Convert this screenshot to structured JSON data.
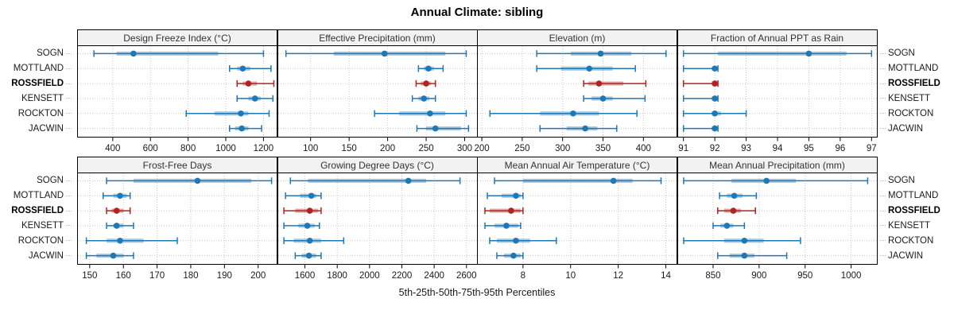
{
  "title": "Annual Climate: sibling",
  "footer": "5th-25th-50th-75th-95th Percentiles",
  "sites": [
    "SOGN",
    "MOTTLAND",
    "ROSSFIELD",
    "KENSETT",
    "ROCKTON",
    "JACWIN"
  ],
  "highlight_site": "ROSSFIELD",
  "colors": {
    "series": "#1f77b4",
    "highlight": "#b22222",
    "strip_bg": "#f2f2f2",
    "grid": "#c9c9c9",
    "border": "#000000"
  },
  "chart_data": [
    {
      "type": "scatter",
      "subtype": "percentile-interval-dotplot",
      "row": 0,
      "col": 0,
      "title": "Design Freeze Index (°C)",
      "percentiles": [
        "5th",
        "25th",
        "50th",
        "75th",
        "95th"
      ],
      "xlim": [
        215,
        1270
      ],
      "ticks": [
        400,
        600,
        800,
        1000,
        1200
      ],
      "grid": "dotted",
      "series": [
        {
          "name": "SOGN",
          "values": [
            300,
            420,
            510,
            960,
            1200
          ]
        },
        {
          "name": "MOTTLAND",
          "values": [
            1020,
            1060,
            1090,
            1130,
            1240
          ]
        },
        {
          "name": "ROSSFIELD",
          "values": [
            1060,
            1090,
            1120,
            1165,
            1255
          ]
        },
        {
          "name": "KENSETT",
          "values": [
            1060,
            1120,
            1155,
            1185,
            1250
          ]
        },
        {
          "name": "ROCKTON",
          "values": [
            790,
            940,
            1080,
            1120,
            1230
          ]
        },
        {
          "name": "JACWIN",
          "values": [
            1020,
            1050,
            1085,
            1120,
            1190
          ]
        }
      ]
    },
    {
      "type": "scatter",
      "subtype": "percentile-interval-dotplot",
      "row": 0,
      "col": 1,
      "title": "Effective Precipitation (mm)",
      "percentiles": [
        "5th",
        "25th",
        "50th",
        "75th",
        "95th"
      ],
      "xlim": [
        58,
        316
      ],
      "ticks": [
        100,
        150,
        200,
        250,
        300
      ],
      "grid": "dotted",
      "series": [
        {
          "name": "SOGN",
          "values": [
            68,
            130,
            196,
            275,
            302
          ]
        },
        {
          "name": "MOTTLAND",
          "values": [
            240,
            247,
            253,
            260,
            272
          ]
        },
        {
          "name": "ROSSFIELD",
          "values": [
            237,
            243,
            250,
            256,
            262
          ]
        },
        {
          "name": "KENSETT",
          "values": [
            232,
            240,
            247,
            254,
            262
          ]
        },
        {
          "name": "ROCKTON",
          "values": [
            183,
            215,
            255,
            275,
            302
          ]
        },
        {
          "name": "JACWIN",
          "values": [
            238,
            250,
            262,
            295,
            305
          ]
        }
      ]
    },
    {
      "type": "scatter",
      "subtype": "percentile-interval-dotplot",
      "row": 0,
      "col": 2,
      "title": "Elevation (m)",
      "percentiles": [
        "5th",
        "25th",
        "50th",
        "75th",
        "95th"
      ],
      "xlim": [
        195,
        441
      ],
      "ticks": [
        200,
        250,
        300,
        350,
        400
      ],
      "grid": "dotted",
      "series": [
        {
          "name": "SOGN",
          "values": [
            268,
            310,
            347,
            385,
            428
          ]
        },
        {
          "name": "MOTTLAND",
          "values": [
            268,
            298,
            333,
            362,
            390
          ]
        },
        {
          "name": "ROSSFIELD",
          "values": [
            326,
            332,
            345,
            375,
            403
          ]
        },
        {
          "name": "KENSETT",
          "values": [
            326,
            336,
            350,
            362,
            402
          ]
        },
        {
          "name": "ROCKTON",
          "values": [
            210,
            272,
            313,
            345,
            392
          ]
        },
        {
          "name": "JACWIN",
          "values": [
            272,
            305,
            328,
            343,
            367
          ]
        }
      ]
    },
    {
      "type": "scatter",
      "subtype": "percentile-interval-dotplot",
      "row": 0,
      "col": 3,
      "title": "Fraction of Annual PPT as Rain",
      "percentiles": [
        "5th",
        "25th",
        "50th",
        "75th",
        "95th"
      ],
      "xlim": [
        90.83,
        97.17
      ],
      "ticks": [
        91,
        92,
        93,
        94,
        95,
        96,
        97
      ],
      "grid": "dotted",
      "series": [
        {
          "name": "SOGN",
          "values": [
            91,
            92.1,
            95,
            96.2,
            97
          ]
        },
        {
          "name": "MOTTLAND",
          "values": [
            91,
            91.9,
            92,
            92.05,
            92.1
          ]
        },
        {
          "name": "ROSSFIELD",
          "values": [
            91,
            91.9,
            92,
            92.05,
            92.1
          ]
        },
        {
          "name": "KENSETT",
          "values": [
            91,
            91.9,
            92,
            92.05,
            92.1
          ]
        },
        {
          "name": "ROCKTON",
          "values": [
            91,
            91.9,
            92,
            92.2,
            93
          ]
        },
        {
          "name": "JACWIN",
          "values": [
            91,
            91.9,
            92,
            92.05,
            92.1
          ]
        }
      ]
    },
    {
      "type": "scatter",
      "subtype": "percentile-interval-dotplot",
      "row": 1,
      "col": 0,
      "title": "Frost-Free Days",
      "percentiles": [
        "5th",
        "25th",
        "50th",
        "75th",
        "95th"
      ],
      "xlim": [
        146.5,
        205.5
      ],
      "ticks": [
        150,
        160,
        170,
        180,
        190,
        200
      ],
      "grid": "dotted",
      "series": [
        {
          "name": "SOGN",
          "values": [
            155,
            163,
            182,
            198,
            204
          ]
        },
        {
          "name": "MOTTLAND",
          "values": [
            154,
            157,
            159,
            161,
            162
          ]
        },
        {
          "name": "ROSSFIELD",
          "values": [
            155,
            156.5,
            158,
            160,
            162
          ]
        },
        {
          "name": "KENSETT",
          "values": [
            155,
            157,
            158,
            160,
            163
          ]
        },
        {
          "name": "ROCKTON",
          "values": [
            149,
            155,
            159,
            166,
            176
          ]
        },
        {
          "name": "JACWIN",
          "values": [
            149,
            152,
            157,
            160,
            163
          ]
        }
      ]
    },
    {
      "type": "scatter",
      "subtype": "percentile-interval-dotplot",
      "row": 1,
      "col": 1,
      "title": "Growing Degree Days (°C)",
      "percentiles": [
        "5th",
        "25th",
        "50th",
        "75th",
        "95th"
      ],
      "xlim": [
        1435,
        2665
      ],
      "ticks": [
        1600,
        1800,
        2000,
        2200,
        2400,
        2600
      ],
      "grid": "dotted",
      "series": [
        {
          "name": "SOGN",
          "values": [
            1510,
            1620,
            2240,
            2350,
            2560
          ]
        },
        {
          "name": "MOTTLAND",
          "values": [
            1480,
            1570,
            1640,
            1670,
            1700
          ]
        },
        {
          "name": "ROSSFIELD",
          "values": [
            1470,
            1540,
            1630,
            1680,
            1700
          ]
        },
        {
          "name": "KENSETT",
          "values": [
            1470,
            1560,
            1615,
            1660,
            1690
          ]
        },
        {
          "name": "ROCKTON",
          "values": [
            1470,
            1530,
            1630,
            1700,
            1840
          ]
        },
        {
          "name": "JACWIN",
          "values": [
            1540,
            1580,
            1625,
            1670,
            1700
          ]
        }
      ]
    },
    {
      "type": "scatter",
      "subtype": "percentile-interval-dotplot",
      "row": 1,
      "col": 2,
      "title": "Mean Annual Air Temperature (°C)",
      "percentiles": [
        "5th",
        "25th",
        "50th",
        "75th",
        "95th"
      ],
      "xlim": [
        6.1,
        14.45
      ],
      "ticks": [
        8,
        10,
        12,
        14
      ],
      "grid": "dotted",
      "series": [
        {
          "name": "SOGN",
          "values": [
            6.8,
            8.0,
            11.8,
            12.6,
            13.8
          ]
        },
        {
          "name": "MOTTLAND",
          "values": [
            6.5,
            7.1,
            7.7,
            7.9,
            8.0
          ]
        },
        {
          "name": "ROSSFIELD",
          "values": [
            6.4,
            6.6,
            7.5,
            7.9,
            8.0
          ]
        },
        {
          "name": "KENSETT",
          "values": [
            6.4,
            6.8,
            7.3,
            7.8,
            7.9
          ]
        },
        {
          "name": "ROCKTON",
          "values": [
            6.6,
            6.9,
            7.7,
            8.3,
            9.4
          ]
        },
        {
          "name": "JACWIN",
          "values": [
            6.9,
            7.2,
            7.6,
            7.9,
            8.0
          ]
        }
      ]
    },
    {
      "type": "scatter",
      "subtype": "percentile-interval-dotplot",
      "row": 1,
      "col": 3,
      "title": "Mean Annual Precipitation (mm)",
      "percentiles": [
        "5th",
        "25th",
        "50th",
        "75th",
        "95th"
      ],
      "xlim": [
        812,
        1028
      ],
      "ticks": [
        850,
        900,
        950,
        1000
      ],
      "grid": "dotted",
      "series": [
        {
          "name": "SOGN",
          "values": [
            818,
            870,
            908,
            940,
            1018
          ]
        },
        {
          "name": "MOTTLAND",
          "values": [
            857,
            865,
            873,
            882,
            897
          ]
        },
        {
          "name": "ROSSFIELD",
          "values": [
            855,
            862,
            872,
            880,
            896
          ]
        },
        {
          "name": "KENSETT",
          "values": [
            850,
            858,
            865,
            872,
            884
          ]
        },
        {
          "name": "ROCKTON",
          "values": [
            818,
            862,
            884,
            905,
            945
          ]
        },
        {
          "name": "JACWIN",
          "values": [
            855,
            868,
            884,
            895,
            930
          ]
        }
      ]
    }
  ]
}
